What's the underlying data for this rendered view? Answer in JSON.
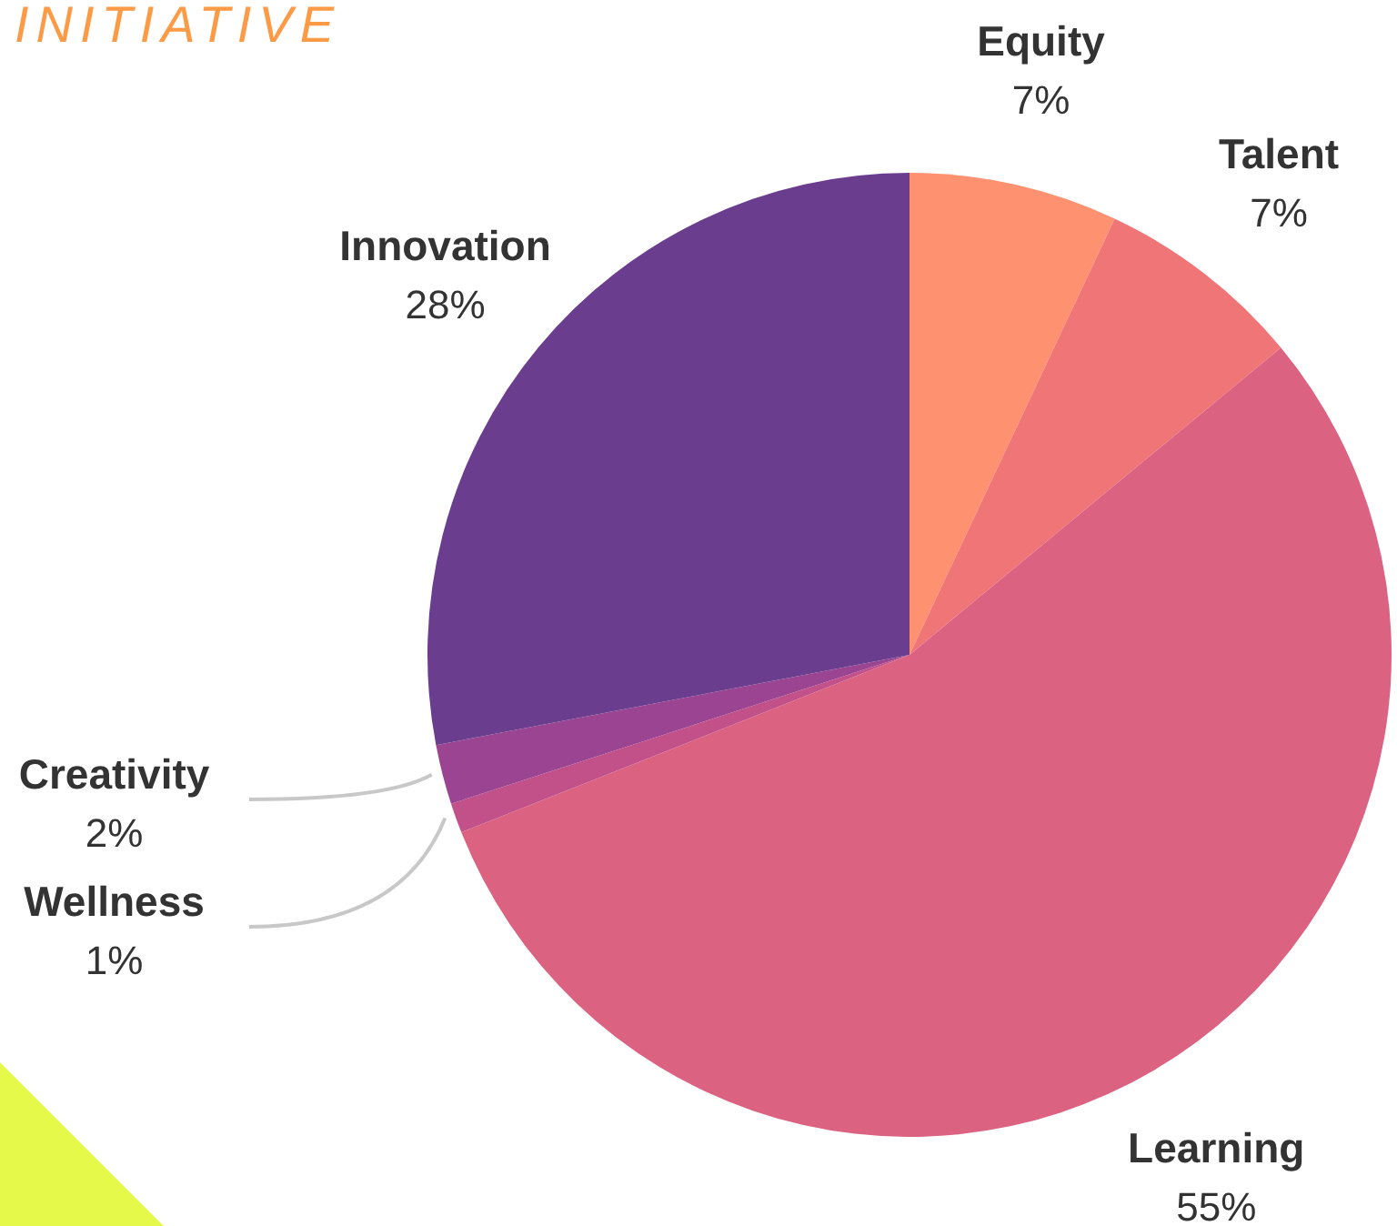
{
  "chart_data": {
    "type": "pie",
    "title": "INITIATIVE",
    "categories": [
      "Equity",
      "Talent",
      "Learning",
      "Wellness",
      "Creativity",
      "Innovation"
    ],
    "values": [
      7,
      7,
      55,
      1,
      2,
      28
    ],
    "colors": [
      "#fd9170",
      "#f07577",
      "#dc6282",
      "#c2518a",
      "#9b4491",
      "#6a3d8f"
    ],
    "value_labels": [
      "7%",
      "7%",
      "55%",
      "1%",
      "2%",
      "28%"
    ],
    "legend": false
  }
}
